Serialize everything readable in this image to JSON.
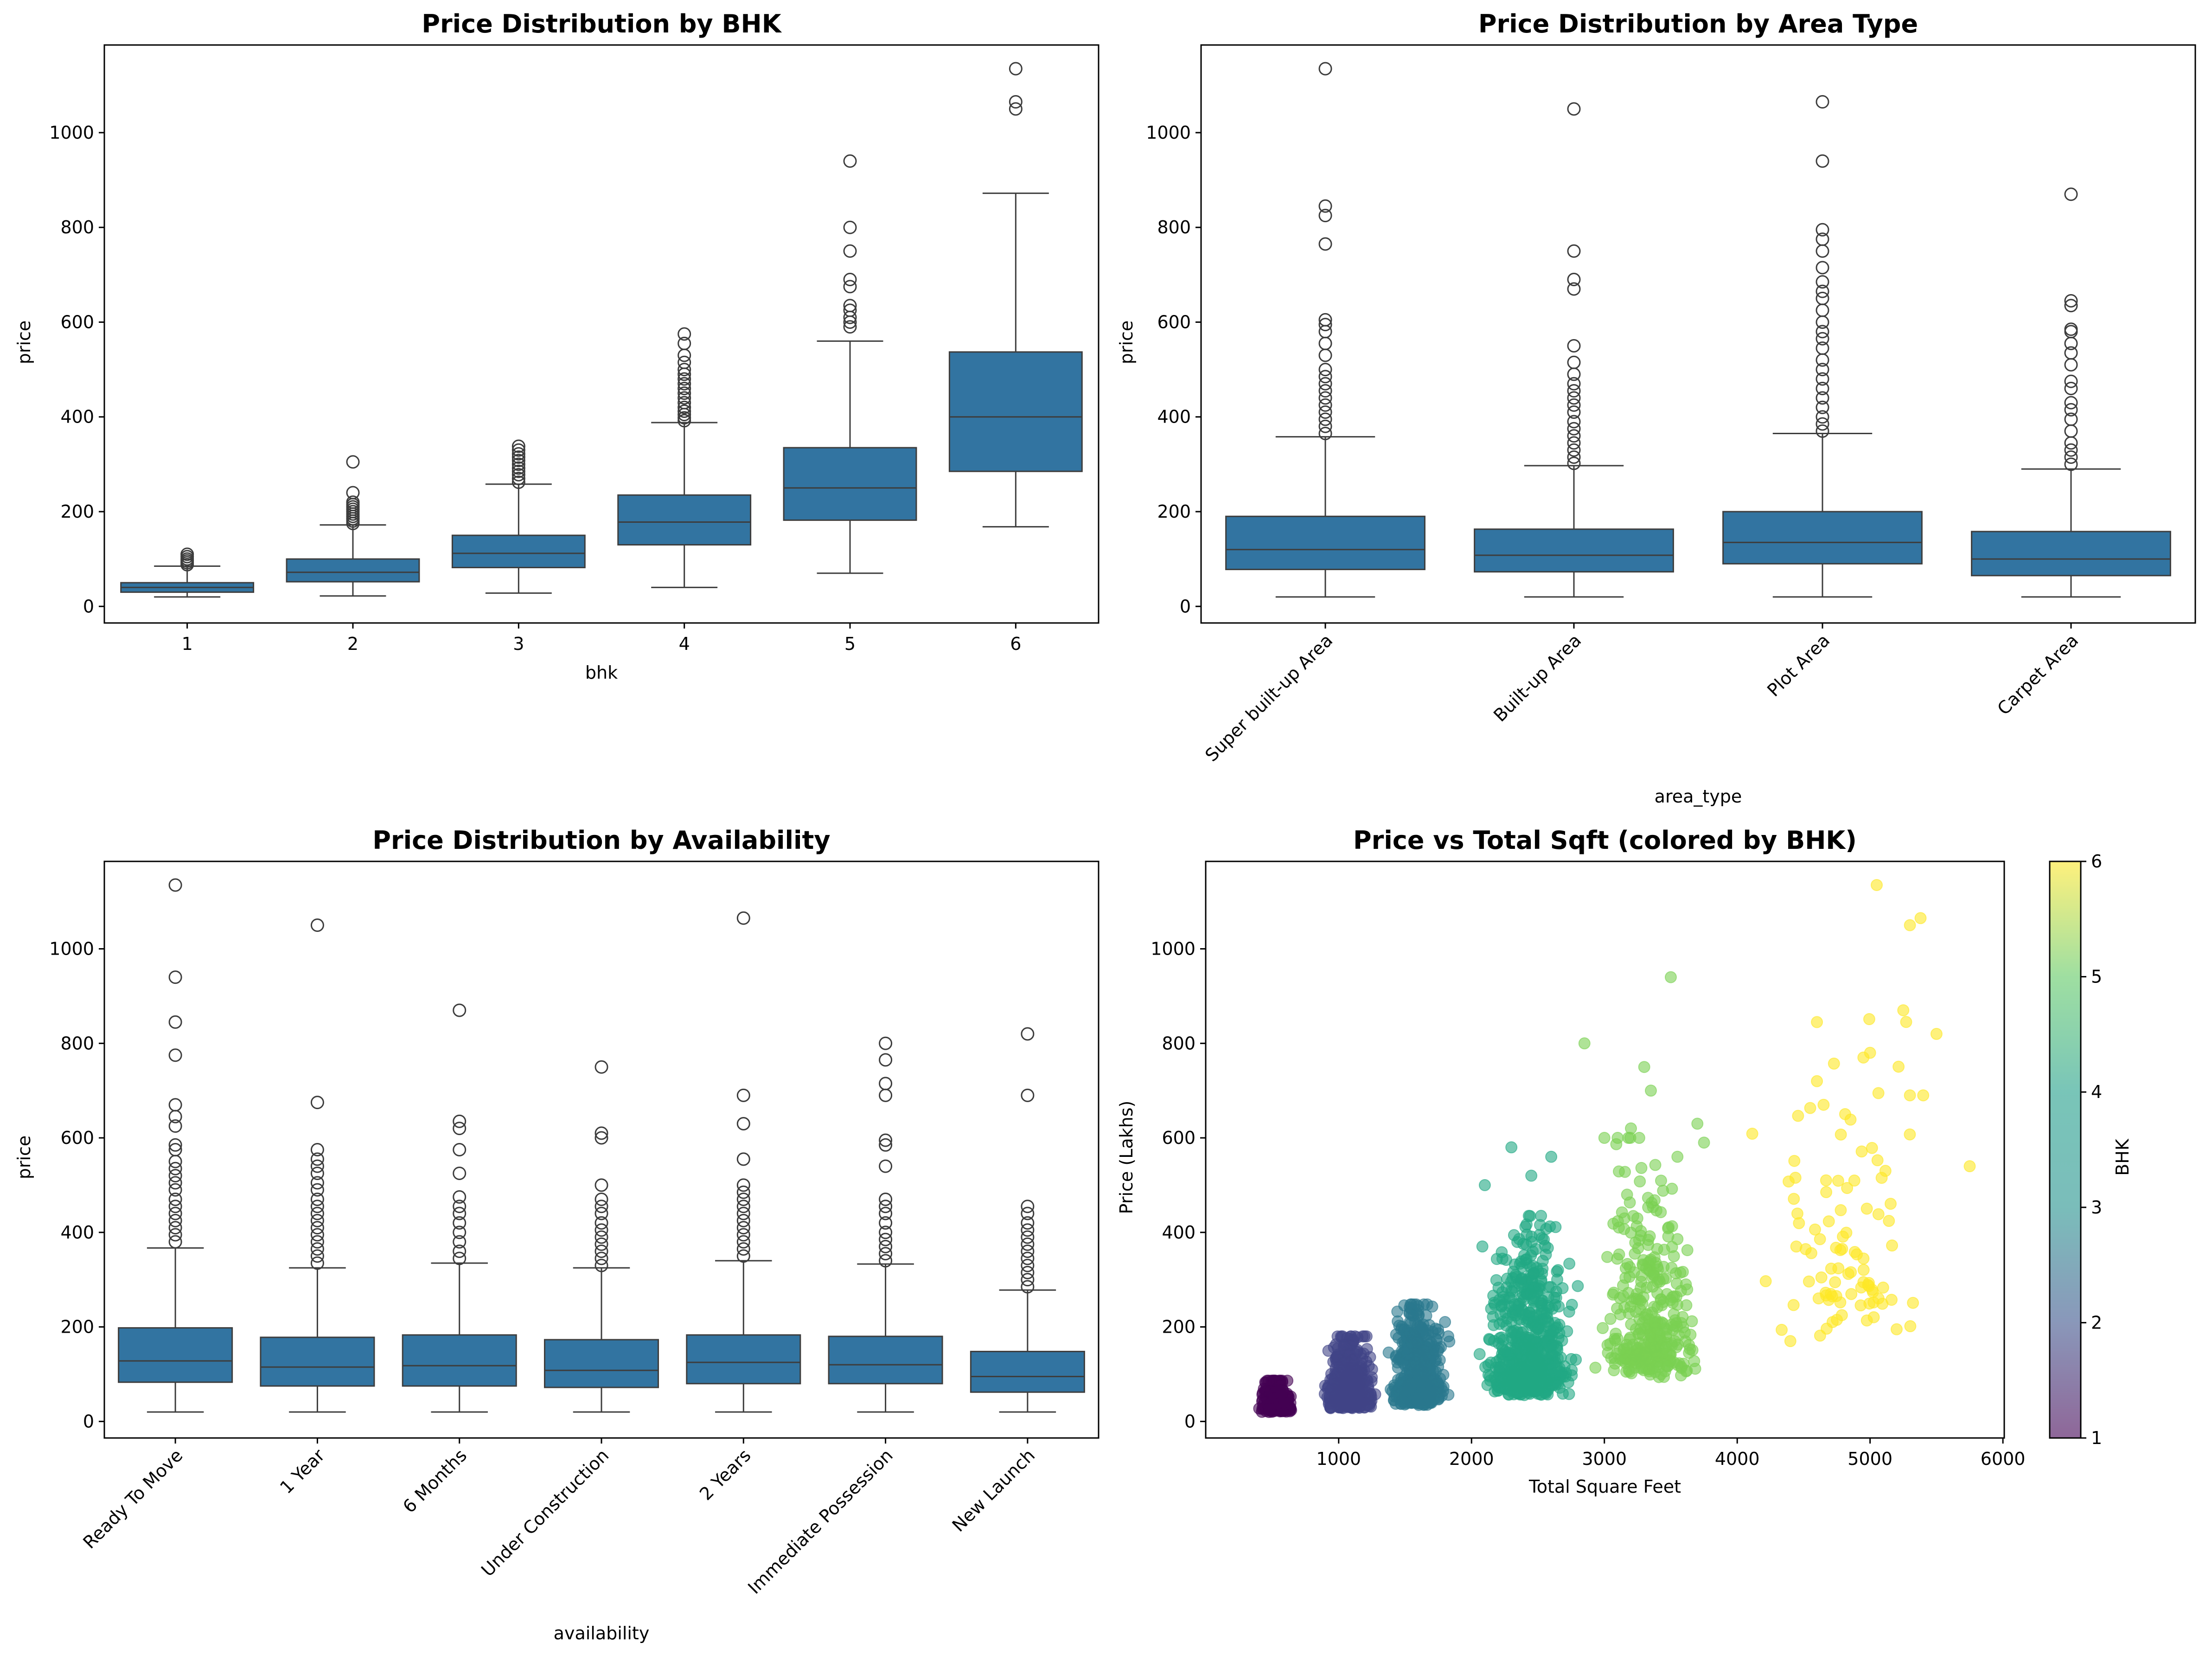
{
  "figure": {
    "colors": {
      "box": "#3274a1",
      "edge": "#3d3d3d",
      "axis": "#000000"
    }
  },
  "chart_data": [
    {
      "type": "box",
      "title": "Price Distribution by BHK",
      "xlabel": "bhk",
      "ylabel": "price",
      "ylim": [
        -35,
        1185
      ],
      "yticks": [
        0,
        200,
        400,
        600,
        800,
        1000
      ],
      "categories": [
        "1",
        "2",
        "3",
        "4",
        "5",
        "6"
      ],
      "boxes": [
        {
          "category": "1",
          "whisker_low": 20,
          "q1": 30,
          "median": 40,
          "q3": 50,
          "whisker_high": 85,
          "outliers": [
            88,
            92,
            96,
            100,
            105,
            110
          ]
        },
        {
          "category": "2",
          "whisker_low": 22,
          "q1": 52,
          "median": 72,
          "q3": 100,
          "whisker_high": 172,
          "outliers": [
            175,
            180,
            185,
            190,
            195,
            200,
            205,
            210,
            215,
            220,
            240,
            305
          ]
        },
        {
          "category": "3",
          "whisker_low": 28,
          "q1": 82,
          "median": 112,
          "q3": 150,
          "whisker_high": 258,
          "outliers": [
            262,
            270,
            278,
            285,
            292,
            300,
            308,
            315,
            322,
            330,
            338
          ]
        },
        {
          "category": "4",
          "whisker_low": 40,
          "q1": 130,
          "median": 178,
          "q3": 235,
          "whisker_high": 388,
          "outliers": [
            392,
            398,
            405,
            412,
            420,
            430,
            440,
            450,
            460,
            470,
            480,
            490,
            500,
            515,
            530,
            555,
            575
          ]
        },
        {
          "category": "5",
          "whisker_low": 70,
          "q1": 182,
          "median": 250,
          "q3": 335,
          "whisker_high": 560,
          "outliers": [
            590,
            600,
            610,
            625,
            635,
            675,
            690,
            750,
            800,
            940
          ]
        },
        {
          "category": "6",
          "whisker_low": 168,
          "q1": 285,
          "median": 400,
          "q3": 537,
          "whisker_high": 872,
          "outliers": [
            1050,
            1065,
            1135
          ]
        }
      ]
    },
    {
      "type": "box",
      "title": "Price Distribution by Area Type",
      "xlabel": "area_type",
      "ylabel": "price",
      "ylim": [
        -35,
        1185
      ],
      "yticks": [
        0,
        200,
        400,
        600,
        800,
        1000
      ],
      "categories": [
        "Super built-up Area",
        "Built-up Area",
        "Plot Area",
        "Carpet Area"
      ],
      "boxes": [
        {
          "category": "Super built-up Area",
          "whisker_low": 20,
          "q1": 78,
          "median": 120,
          "q3": 190,
          "whisker_high": 358,
          "outliers": [
            365,
            380,
            395,
            410,
            425,
            440,
            455,
            470,
            485,
            500,
            530,
            555,
            580,
            595,
            605,
            765,
            825,
            845,
            1135
          ]
        },
        {
          "category": "Built-up Area",
          "whisker_low": 20,
          "q1": 73,
          "median": 108,
          "q3": 163,
          "whisker_high": 297,
          "outliers": [
            302,
            315,
            330,
            345,
            360,
            375,
            390,
            410,
            425,
            440,
            455,
            470,
            490,
            515,
            550,
            670,
            690,
            750,
            1050
          ]
        },
        {
          "category": "Plot Area",
          "whisker_low": 20,
          "q1": 90,
          "median": 135,
          "q3": 200,
          "whisker_high": 365,
          "outliers": [
            370,
            385,
            400,
            420,
            440,
            460,
            480,
            500,
            520,
            545,
            565,
            580,
            600,
            625,
            650,
            665,
            685,
            715,
            750,
            775,
            795,
            940,
            1065
          ]
        },
        {
          "category": "Carpet Area",
          "whisker_low": 20,
          "q1": 65,
          "median": 100,
          "q3": 158,
          "whisker_high": 290,
          "outliers": [
            300,
            315,
            330,
            345,
            370,
            395,
            415,
            430,
            460,
            475,
            510,
            535,
            555,
            580,
            585,
            635,
            645,
            870
          ]
        }
      ]
    },
    {
      "type": "box",
      "title": "Price Distribution by Availability",
      "xlabel": "availability",
      "ylabel": "price",
      "ylim": [
        -35,
        1185
      ],
      "yticks": [
        0,
        200,
        400,
        600,
        800,
        1000
      ],
      "categories": [
        "Ready To Move",
        "1 Year",
        "6 Months",
        "Under Construction",
        "2 Years",
        "Immediate Possession",
        "New Launch"
      ],
      "boxes": [
        {
          "category": "Ready To Move",
          "whisker_low": 20,
          "q1": 83,
          "median": 128,
          "q3": 198,
          "whisker_high": 367,
          "outliers": [
            380,
            395,
            410,
            425,
            440,
            455,
            470,
            490,
            505,
            520,
            535,
            550,
            575,
            585,
            625,
            645,
            670,
            775,
            845,
            940,
            1135
          ]
        },
        {
          "category": "1 Year",
          "whisker_low": 20,
          "q1": 75,
          "median": 115,
          "q3": 178,
          "whisker_high": 325,
          "outliers": [
            335,
            350,
            365,
            380,
            395,
            410,
            425,
            440,
            455,
            470,
            490,
            505,
            525,
            540,
            555,
            575,
            675,
            1050
          ]
        },
        {
          "category": "6 Months",
          "whisker_low": 20,
          "q1": 75,
          "median": 118,
          "q3": 183,
          "whisker_high": 335,
          "outliers": [
            345,
            360,
            380,
            400,
            420,
            440,
            455,
            475,
            525,
            575,
            620,
            635,
            870
          ]
        },
        {
          "category": "Under Construction",
          "whisker_low": 20,
          "q1": 72,
          "median": 108,
          "q3": 173,
          "whisker_high": 325,
          "outliers": [
            330,
            345,
            360,
            375,
            390,
            405,
            420,
            440,
            455,
            470,
            500,
            600,
            610,
            750
          ]
        },
        {
          "category": "2 Years",
          "whisker_low": 20,
          "q1": 80,
          "median": 125,
          "q3": 183,
          "whisker_high": 340,
          "outliers": [
            350,
            365,
            380,
            395,
            410,
            425,
            440,
            455,
            470,
            485,
            500,
            555,
            630,
            690,
            1065
          ]
        },
        {
          "category": "Immediate Possession",
          "whisker_low": 20,
          "q1": 80,
          "median": 120,
          "q3": 180,
          "whisker_high": 333,
          "outliers": [
            340,
            355,
            370,
            385,
            400,
            420,
            440,
            455,
            470,
            540,
            585,
            595,
            690,
            715,
            765,
            800
          ]
        },
        {
          "category": "New Launch",
          "whisker_low": 20,
          "q1": 62,
          "median": 95,
          "q3": 148,
          "whisker_high": 278,
          "outliers": [
            285,
            300,
            315,
            330,
            345,
            360,
            375,
            390,
            405,
            420,
            440,
            455,
            690,
            820
          ]
        }
      ]
    },
    {
      "type": "scatter",
      "title": "Price vs Total Sqft (colored by BHK)",
      "xlabel": "Total Square Feet",
      "ylabel": "Price (Lakhs)",
      "xlim": [
        -1,
        6010
      ],
      "xticks": [
        1000,
        2000,
        3000,
        4000,
        5000,
        6000
      ],
      "ylim": [
        -35,
        1185
      ],
      "yticks": [
        0,
        200,
        400,
        600,
        800,
        1000
      ],
      "colorbar": {
        "label": "BHK",
        "min": 1,
        "max": 6,
        "ticks": [
          1,
          2,
          3,
          4,
          5,
          6
        ],
        "colormap": "viridis"
      },
      "clusters": [
        {
          "bhk": 1,
          "x_range": [
            350,
            720
          ],
          "y_range": [
            20,
            115
          ],
          "count": 320
        },
        {
          "bhk": 2,
          "x_range": [
            800,
            1350
          ],
          "y_range": [
            22,
            240
          ],
          "count": 520
        },
        {
          "bhk": 3,
          "x_range": [
            1300,
            1900
          ],
          "y_range": [
            25,
            330
          ],
          "count": 600
        },
        {
          "bhk": 4,
          "x_range": [
            1950,
            2900
          ],
          "y_range": [
            35,
            580
          ],
          "count": 700
        },
        {
          "bhk": 5,
          "x_range": [
            2800,
            3900
          ],
          "y_range": [
            70,
            800
          ],
          "count": 340
        },
        {
          "bhk": 6,
          "x_range": [
            3850,
            5750
          ],
          "y_range": [
            165,
            1135
          ],
          "count": 90
        }
      ],
      "points": [
        {
          "x": 2850,
          "y": 800,
          "bhk": 5
        },
        {
          "x": 3500,
          "y": 940,
          "bhk": 5
        },
        {
          "x": 3300,
          "y": 750,
          "bhk": 5
        },
        {
          "x": 3000,
          "y": 600,
          "bhk": 5
        },
        {
          "x": 3100,
          "y": 600,
          "bhk": 5
        },
        {
          "x": 3550,
          "y": 560,
          "bhk": 5
        },
        {
          "x": 3700,
          "y": 630,
          "bhk": 5
        },
        {
          "x": 3750,
          "y": 590,
          "bhk": 5
        },
        {
          "x": 3350,
          "y": 700,
          "bhk": 5
        },
        {
          "x": 3200,
          "y": 620,
          "bhk": 5
        },
        {
          "x": 2300,
          "y": 580,
          "bhk": 4
        },
        {
          "x": 2600,
          "y": 560,
          "bhk": 4
        },
        {
          "x": 2450,
          "y": 520,
          "bhk": 4
        },
        {
          "x": 2100,
          "y": 500,
          "bhk": 4
        },
        {
          "x": 5050,
          "y": 1135,
          "bhk": 6
        },
        {
          "x": 5300,
          "y": 1050,
          "bhk": 6
        },
        {
          "x": 5380,
          "y": 1065,
          "bhk": 6
        },
        {
          "x": 5250,
          "y": 870,
          "bhk": 6
        },
        {
          "x": 4600,
          "y": 845,
          "bhk": 6
        },
        {
          "x": 5500,
          "y": 820,
          "bhk": 6
        },
        {
          "x": 5000,
          "y": 780,
          "bhk": 6
        },
        {
          "x": 4950,
          "y": 770,
          "bhk": 6
        },
        {
          "x": 4600,
          "y": 720,
          "bhk": 6
        },
        {
          "x": 5300,
          "y": 690,
          "bhk": 6
        },
        {
          "x": 5400,
          "y": 690,
          "bhk": 6
        },
        {
          "x": 4650,
          "y": 670,
          "bhk": 6
        },
        {
          "x": 5750,
          "y": 540,
          "bhk": 6
        },
        {
          "x": 4400,
          "y": 170,
          "bhk": 6
        },
        {
          "x": 5200,
          "y": 195,
          "bhk": 6
        },
        {
          "x": 4750,
          "y": 215,
          "bhk": 6
        }
      ]
    }
  ]
}
